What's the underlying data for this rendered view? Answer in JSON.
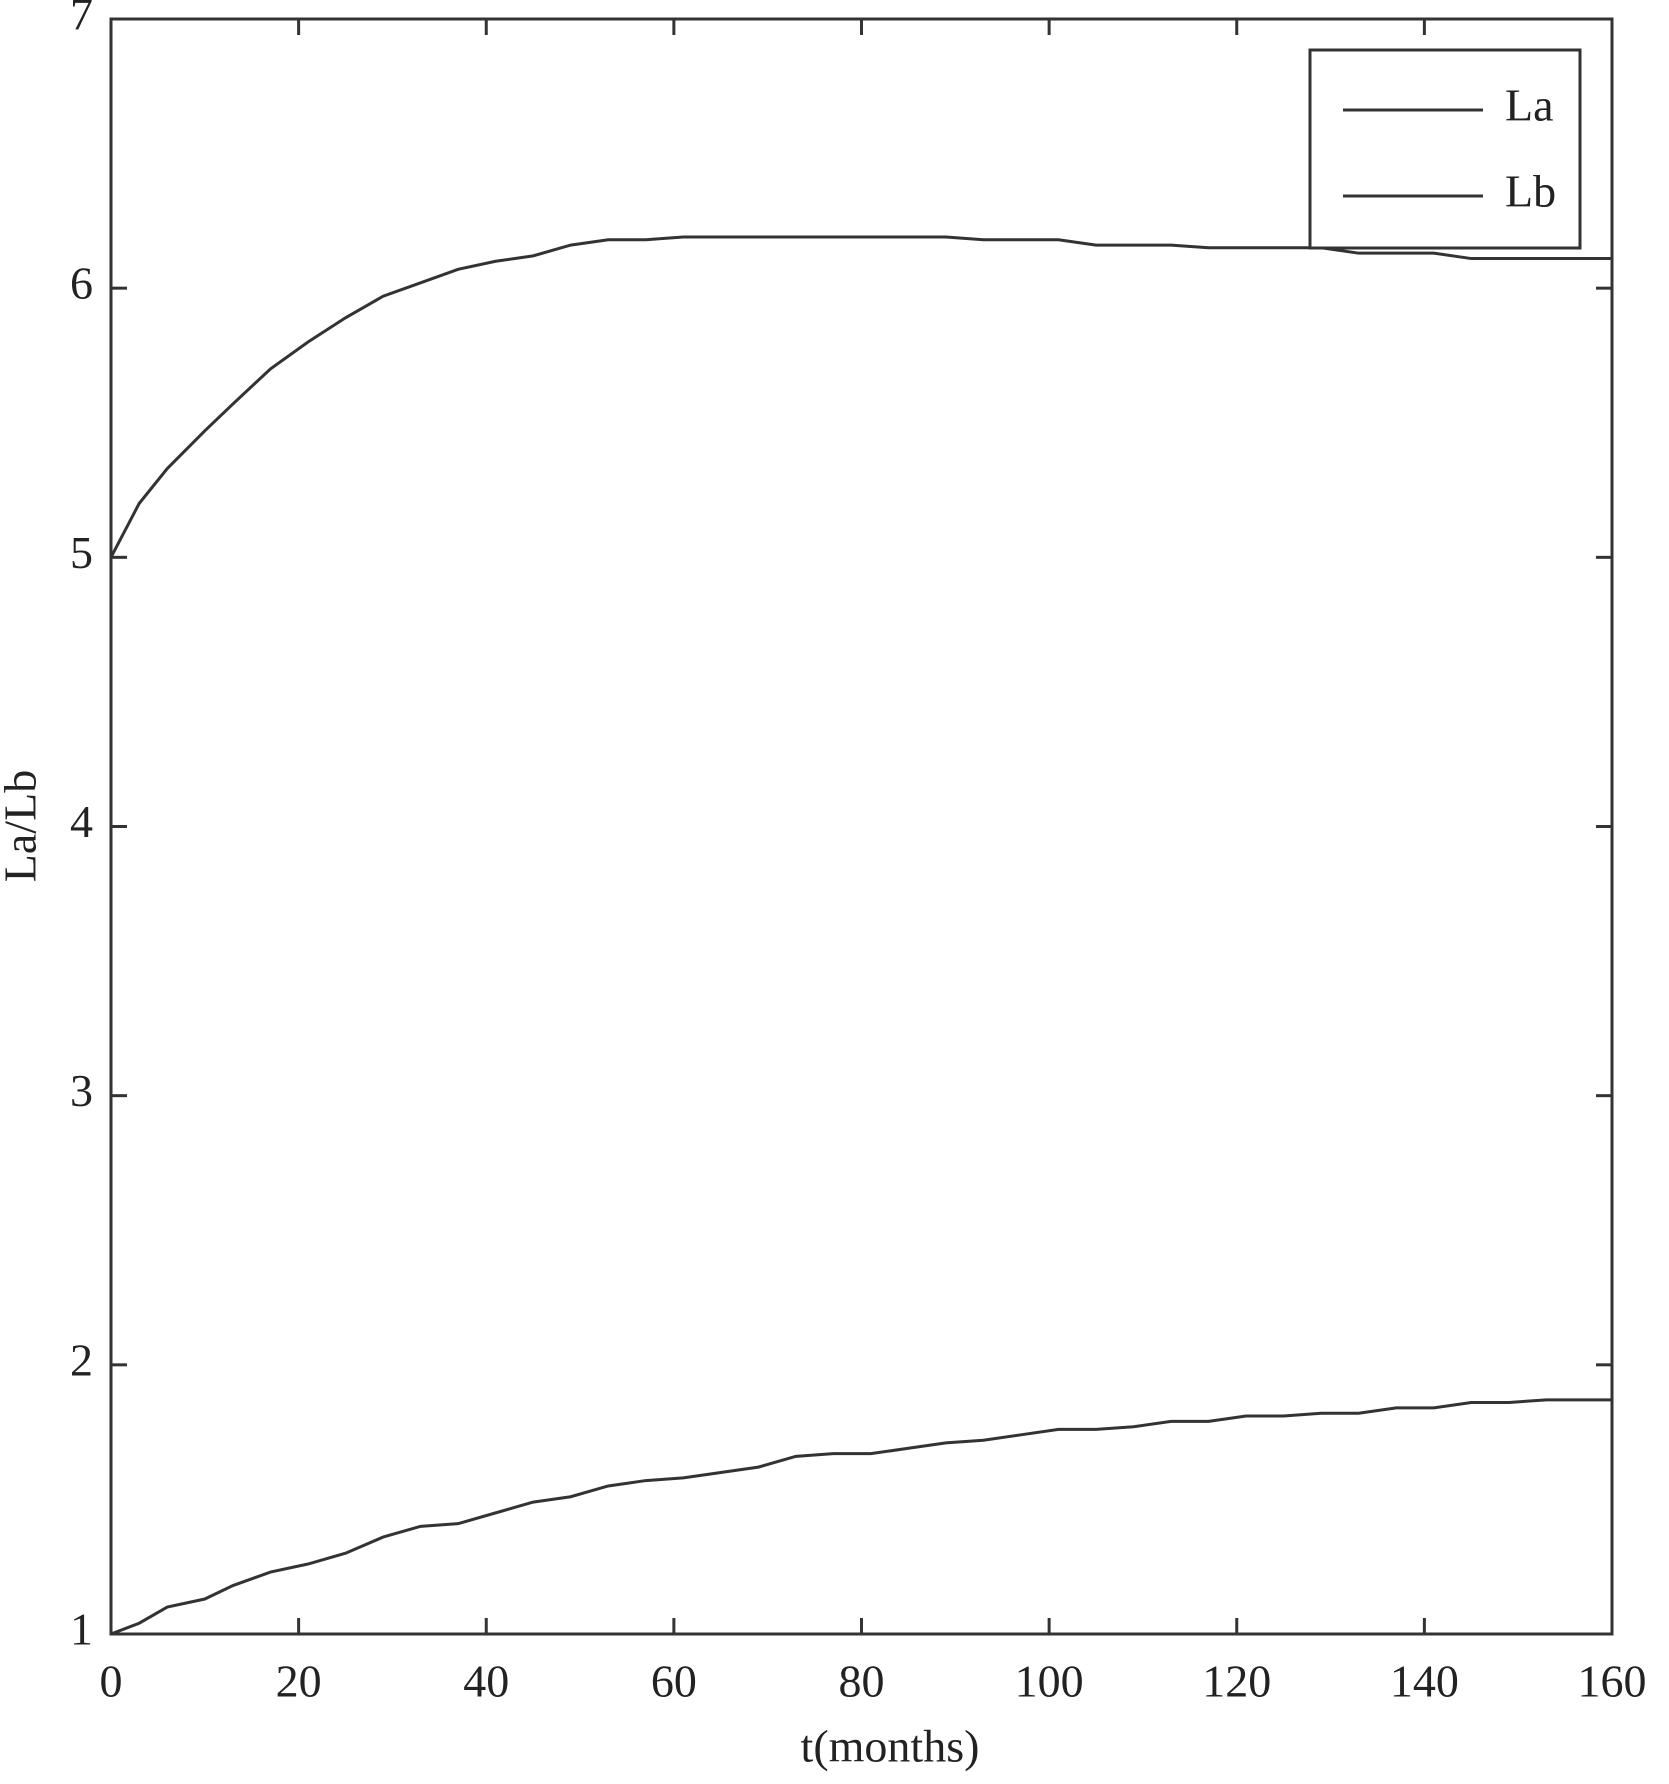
{
  "chart_data": {
    "type": "line",
    "xlabel": "t(months)",
    "ylabel": "La/Lb",
    "x": [
      0,
      3,
      6,
      10,
      13,
      17,
      21,
      25,
      29,
      33,
      37,
      41,
      45,
      49,
      53,
      57,
      61,
      65,
      69,
      73,
      77,
      81,
      85,
      89,
      93,
      97,
      101,
      105,
      109,
      113,
      117,
      121,
      125,
      129,
      133,
      137,
      141,
      145,
      149,
      153,
      157,
      160
    ],
    "series": [
      {
        "name": "La",
        "color": "#333333",
        "values": [
          5.0,
          5.2,
          5.33,
          5.47,
          5.57,
          5.7,
          5.8,
          5.89,
          5.97,
          6.02,
          6.07,
          6.1,
          6.12,
          6.16,
          6.18,
          6.18,
          6.19,
          6.19,
          6.19,
          6.19,
          6.19,
          6.19,
          6.19,
          6.19,
          6.18,
          6.18,
          6.18,
          6.16,
          6.16,
          6.16,
          6.15,
          6.15,
          6.15,
          6.15,
          6.13,
          6.13,
          6.13,
          6.11,
          6.11,
          6.11,
          6.11,
          6.11
        ]
      },
      {
        "name": "Lb",
        "color": "#333333",
        "values": [
          1.0,
          1.04,
          1.1,
          1.13,
          1.18,
          1.23,
          1.26,
          1.3,
          1.36,
          1.4,
          1.41,
          1.45,
          1.49,
          1.51,
          1.55,
          1.57,
          1.58,
          1.6,
          1.62,
          1.66,
          1.67,
          1.67,
          1.69,
          1.71,
          1.72,
          1.74,
          1.76,
          1.76,
          1.77,
          1.79,
          1.79,
          1.81,
          1.81,
          1.82,
          1.82,
          1.84,
          1.84,
          1.86,
          1.86,
          1.87,
          1.87,
          1.87
        ]
      }
    ],
    "xlim": [
      0,
      160
    ],
    "xticks": [
      0,
      20,
      40,
      60,
      80,
      100,
      120,
      140,
      160
    ],
    "ylim": [
      1,
      7
    ],
    "yticks": [
      1,
      2,
      3,
      4,
      5,
      6,
      7
    ],
    "legend": "upper right",
    "grid": false
  }
}
